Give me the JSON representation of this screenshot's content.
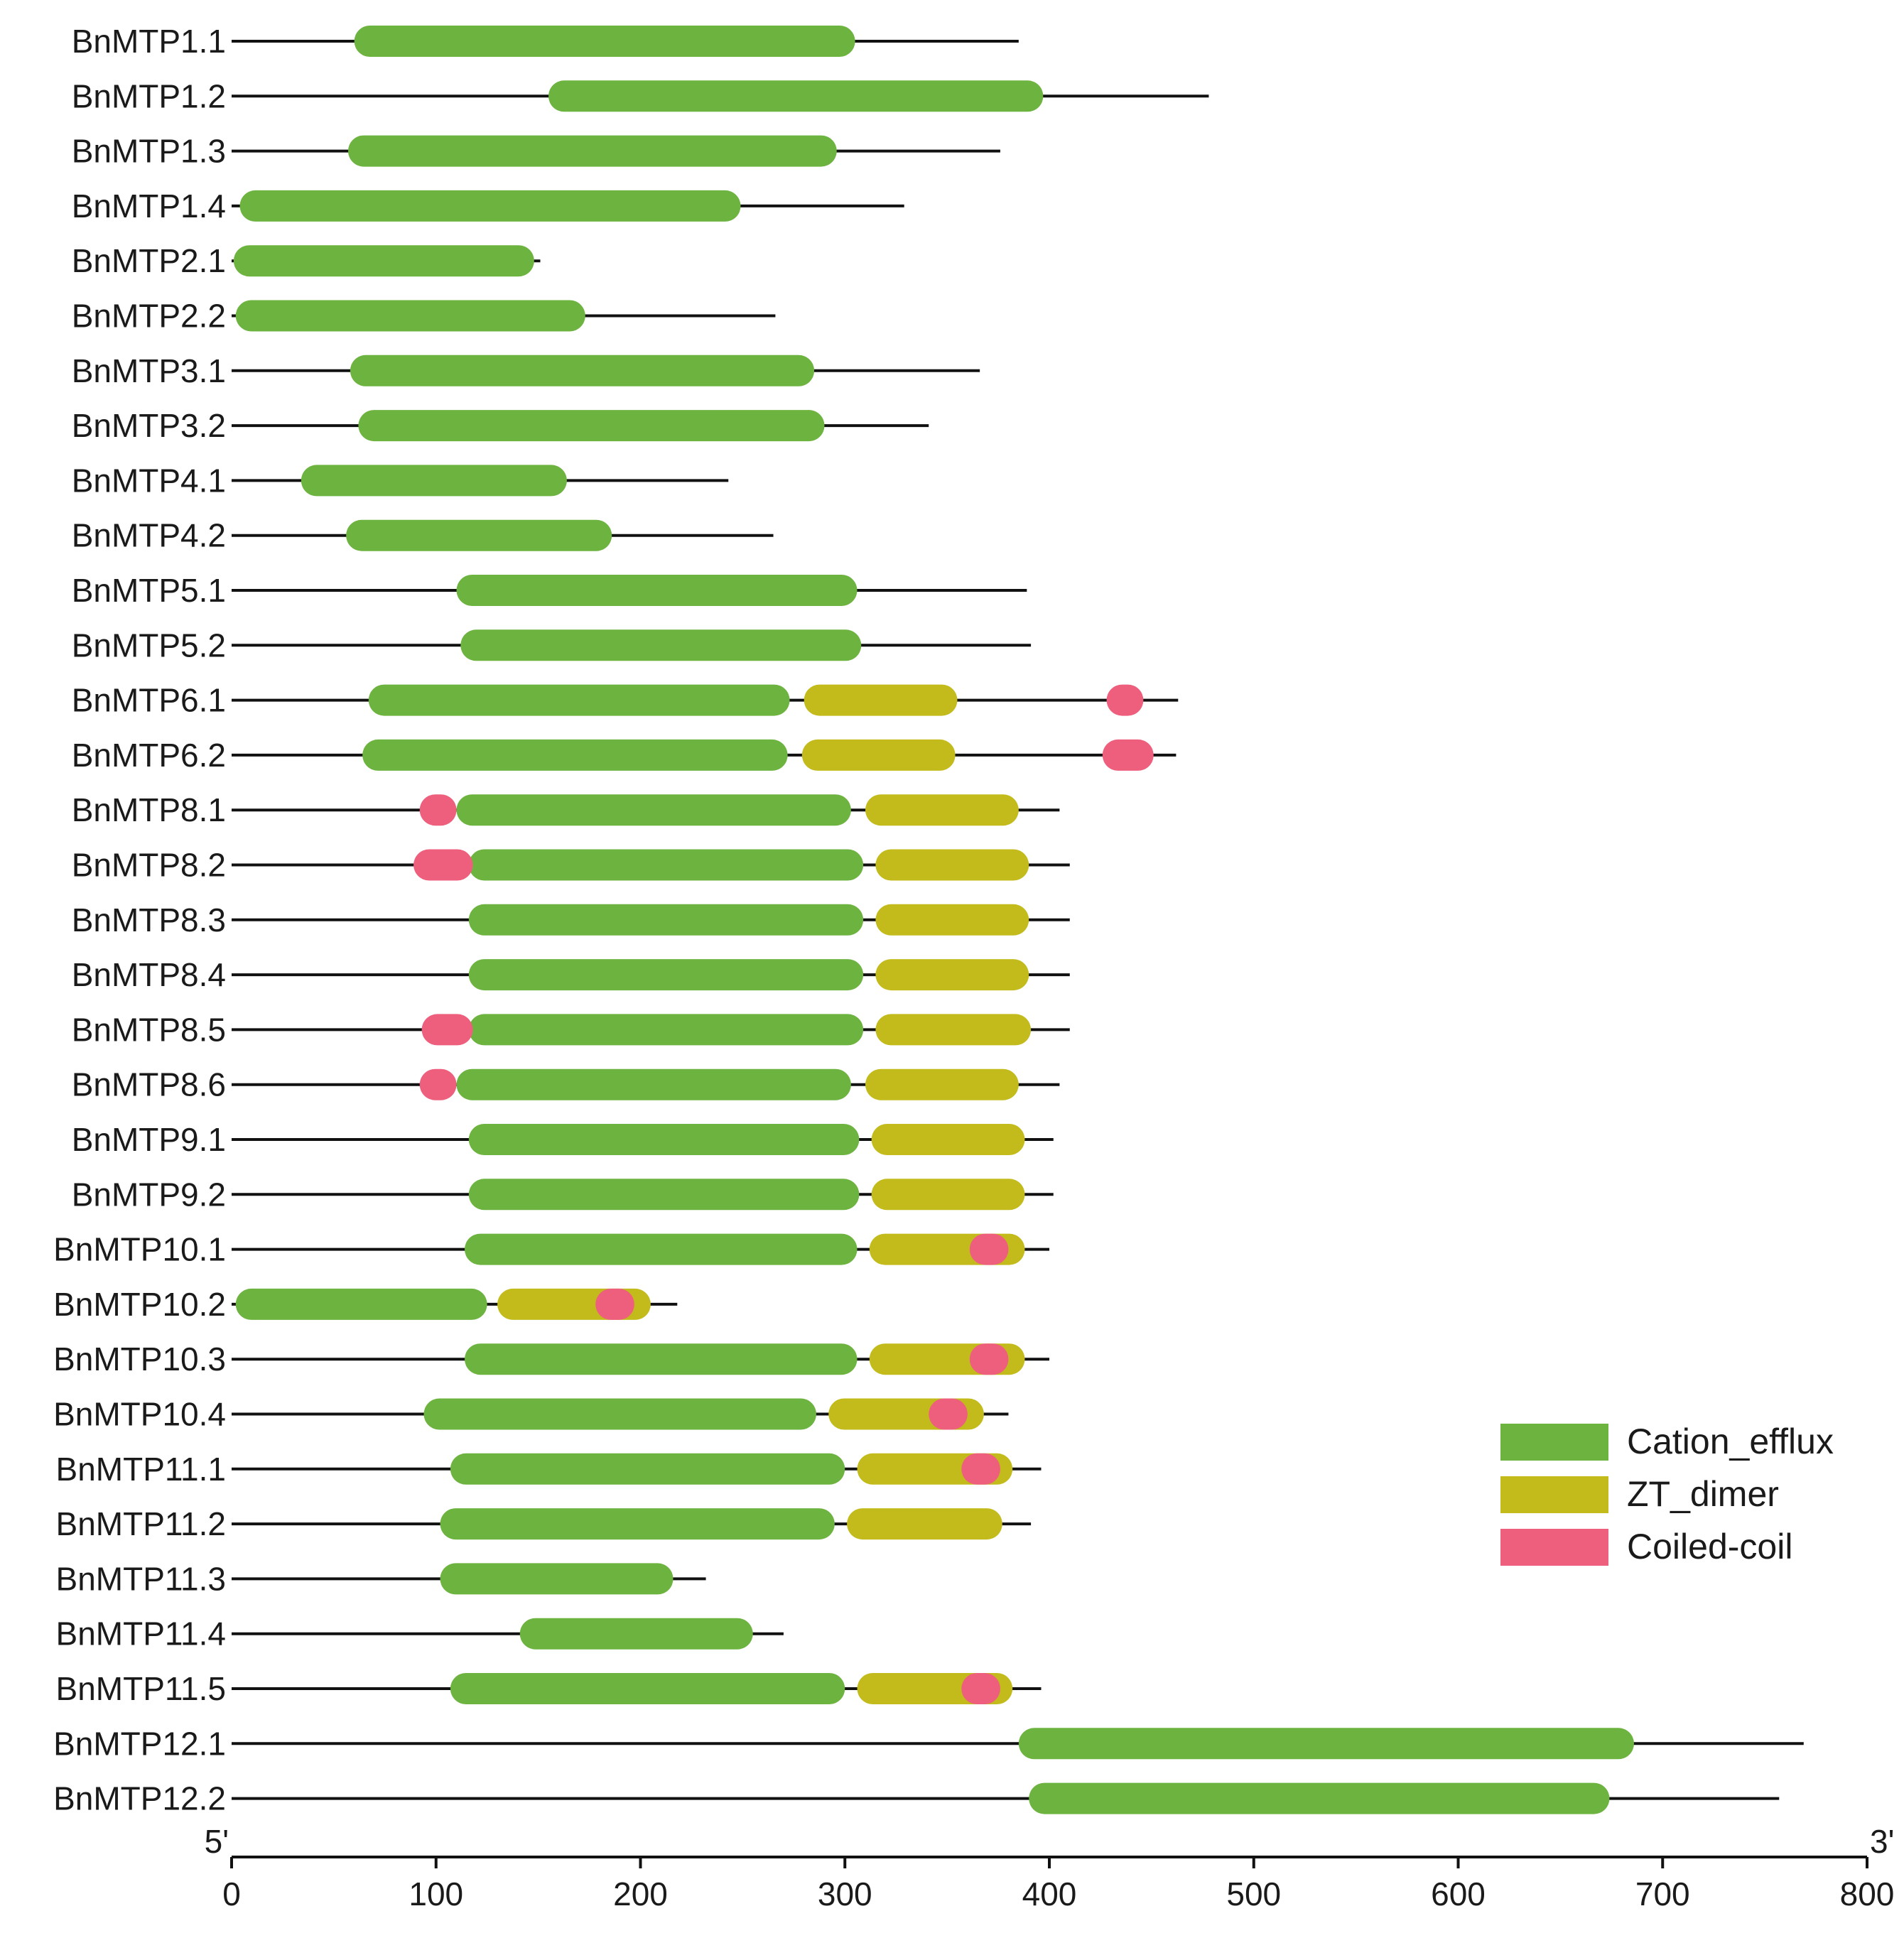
{
  "chart_data": {
    "type": "protein-domain-map",
    "title": "",
    "xlabel": "",
    "ylabel": "",
    "xlim": [
      0,
      800
    ],
    "x_ticks": [
      0,
      100,
      200,
      300,
      400,
      500,
      600,
      700,
      800
    ],
    "x_tick_labels": [
      "0",
      "100",
      "200",
      "300",
      "400",
      "500",
      "600",
      "700",
      "800"
    ],
    "end_labels": {
      "start": "5'",
      "end": "3'"
    },
    "legend": [
      {
        "key": "Cation_efflux",
        "label": "Cation_efflux",
        "color": "#6db33f"
      },
      {
        "key": "ZT_dimer",
        "label": "ZT_dimer",
        "color": "#c2bb1b"
      },
      {
        "key": "Coiled-coil",
        "label": "Coiled-coil",
        "color": "#ee5f7d"
      }
    ],
    "line_color": "#111111",
    "proteins": [
      {
        "name": "BnMTP1.1",
        "length": 385,
        "domains": [
          {
            "type": "Cation_efflux",
            "start": 60,
            "end": 305
          }
        ]
      },
      {
        "name": "BnMTP1.2",
        "length": 478,
        "domains": [
          {
            "type": "Cation_efflux",
            "start": 155,
            "end": 397
          }
        ]
      },
      {
        "name": "BnMTP1.3",
        "length": 376,
        "domains": [
          {
            "type": "Cation_efflux",
            "start": 57,
            "end": 296
          }
        ]
      },
      {
        "name": "BnMTP1.4",
        "length": 329,
        "domains": [
          {
            "type": "Cation_efflux",
            "start": 4,
            "end": 249
          }
        ]
      },
      {
        "name": "BnMTP2.1",
        "length": 151,
        "domains": [
          {
            "type": "Cation_efflux",
            "start": 1,
            "end": 148
          }
        ]
      },
      {
        "name": "BnMTP2.2",
        "length": 266,
        "domains": [
          {
            "type": "Cation_efflux",
            "start": 2,
            "end": 173
          }
        ]
      },
      {
        "name": "BnMTP3.1",
        "length": 366,
        "domains": [
          {
            "type": "Cation_efflux",
            "start": 58,
            "end": 285
          }
        ]
      },
      {
        "name": "BnMTP3.2",
        "length": 341,
        "domains": [
          {
            "type": "Cation_efflux",
            "start": 62,
            "end": 290
          }
        ]
      },
      {
        "name": "BnMTP4.1",
        "length": 243,
        "domains": [
          {
            "type": "Cation_efflux",
            "start": 34,
            "end": 164
          }
        ]
      },
      {
        "name": "BnMTP4.2",
        "length": 265,
        "domains": [
          {
            "type": "Cation_efflux",
            "start": 56,
            "end": 186
          }
        ]
      },
      {
        "name": "BnMTP5.1",
        "length": 389,
        "domains": [
          {
            "type": "Cation_efflux",
            "start": 110,
            "end": 306
          }
        ]
      },
      {
        "name": "BnMTP5.2",
        "length": 391,
        "domains": [
          {
            "type": "Cation_efflux",
            "start": 112,
            "end": 308
          }
        ]
      },
      {
        "name": "BnMTP6.1",
        "length": 463,
        "domains": [
          {
            "type": "Cation_efflux",
            "start": 67,
            "end": 273
          },
          {
            "type": "ZT_dimer",
            "start": 280,
            "end": 355
          },
          {
            "type": "Coiled-coil",
            "start": 428,
            "end": 446
          }
        ]
      },
      {
        "name": "BnMTP6.2",
        "length": 462,
        "domains": [
          {
            "type": "Cation_efflux",
            "start": 64,
            "end": 272
          },
          {
            "type": "ZT_dimer",
            "start": 279,
            "end": 354
          },
          {
            "type": "Coiled-coil",
            "start": 426,
            "end": 451
          }
        ]
      },
      {
        "name": "BnMTP8.1",
        "length": 405,
        "domains": [
          {
            "type": "Coiled-coil",
            "start": 92,
            "end": 110
          },
          {
            "type": "Cation_efflux",
            "start": 110,
            "end": 303
          },
          {
            "type": "ZT_dimer",
            "start": 310,
            "end": 385
          }
        ]
      },
      {
        "name": "BnMTP8.2",
        "length": 410,
        "domains": [
          {
            "type": "Coiled-coil",
            "start": 89,
            "end": 118
          },
          {
            "type": "Cation_efflux",
            "start": 116,
            "end": 309
          },
          {
            "type": "ZT_dimer",
            "start": 315,
            "end": 390
          }
        ]
      },
      {
        "name": "BnMTP8.3",
        "length": 410,
        "domains": [
          {
            "type": "Cation_efflux",
            "start": 116,
            "end": 309
          },
          {
            "type": "ZT_dimer",
            "start": 315,
            "end": 390
          }
        ]
      },
      {
        "name": "BnMTP8.4",
        "length": 410,
        "domains": [
          {
            "type": "Cation_efflux",
            "start": 116,
            "end": 309
          },
          {
            "type": "ZT_dimer",
            "start": 315,
            "end": 390
          }
        ]
      },
      {
        "name": "BnMTP8.5",
        "length": 410,
        "domains": [
          {
            "type": "Coiled-coil",
            "start": 93,
            "end": 118
          },
          {
            "type": "Cation_efflux",
            "start": 116,
            "end": 309
          },
          {
            "type": "ZT_dimer",
            "start": 315,
            "end": 391
          }
        ]
      },
      {
        "name": "BnMTP8.6",
        "length": 405,
        "domains": [
          {
            "type": "Coiled-coil",
            "start": 92,
            "end": 110
          },
          {
            "type": "Cation_efflux",
            "start": 110,
            "end": 303
          },
          {
            "type": "ZT_dimer",
            "start": 310,
            "end": 385
          }
        ]
      },
      {
        "name": "BnMTP9.1",
        "length": 402,
        "domains": [
          {
            "type": "Cation_efflux",
            "start": 116,
            "end": 307
          },
          {
            "type": "ZT_dimer",
            "start": 313,
            "end": 388
          }
        ]
      },
      {
        "name": "BnMTP9.2",
        "length": 402,
        "domains": [
          {
            "type": "Cation_efflux",
            "start": 116,
            "end": 307
          },
          {
            "type": "ZT_dimer",
            "start": 313,
            "end": 388
          }
        ]
      },
      {
        "name": "BnMTP10.1",
        "length": 400,
        "domains": [
          {
            "type": "Cation_efflux",
            "start": 114,
            "end": 306
          },
          {
            "type": "ZT_dimer",
            "start": 312,
            "end": 388
          },
          {
            "type": "Coiled-coil",
            "start": 361,
            "end": 380
          }
        ]
      },
      {
        "name": "BnMTP10.2",
        "length": 218,
        "domains": [
          {
            "type": "Cation_efflux",
            "start": 2,
            "end": 125
          },
          {
            "type": "ZT_dimer",
            "start": 130,
            "end": 205
          },
          {
            "type": "Coiled-coil",
            "start": 178,
            "end": 197
          }
        ]
      },
      {
        "name": "BnMTP10.3",
        "length": 400,
        "domains": [
          {
            "type": "Cation_efflux",
            "start": 114,
            "end": 306
          },
          {
            "type": "ZT_dimer",
            "start": 312,
            "end": 388
          },
          {
            "type": "Coiled-coil",
            "start": 361,
            "end": 380
          }
        ]
      },
      {
        "name": "BnMTP10.4",
        "length": 380,
        "domains": [
          {
            "type": "Cation_efflux",
            "start": 94,
            "end": 286
          },
          {
            "type": "ZT_dimer",
            "start": 292,
            "end": 368
          },
          {
            "type": "Coiled-coil",
            "start": 341,
            "end": 360
          }
        ]
      },
      {
        "name": "BnMTP11.1",
        "length": 396,
        "domains": [
          {
            "type": "Cation_efflux",
            "start": 107,
            "end": 300
          },
          {
            "type": "ZT_dimer",
            "start": 306,
            "end": 382
          },
          {
            "type": "Coiled-coil",
            "start": 357,
            "end": 376
          }
        ]
      },
      {
        "name": "BnMTP11.2",
        "length": 391,
        "domains": [
          {
            "type": "Cation_efflux",
            "start": 102,
            "end": 295
          },
          {
            "type": "ZT_dimer",
            "start": 301,
            "end": 377
          }
        ]
      },
      {
        "name": "BnMTP11.3",
        "length": 232,
        "domains": [
          {
            "type": "Cation_efflux",
            "start": 102,
            "end": 216
          }
        ]
      },
      {
        "name": "BnMTP11.4",
        "length": 270,
        "domains": [
          {
            "type": "Cation_efflux",
            "start": 141,
            "end": 255
          }
        ]
      },
      {
        "name": "BnMTP11.5",
        "length": 396,
        "domains": [
          {
            "type": "Cation_efflux",
            "start": 107,
            "end": 300
          },
          {
            "type": "ZT_dimer",
            "start": 306,
            "end": 382
          },
          {
            "type": "Coiled-coil",
            "start": 357,
            "end": 376
          }
        ]
      },
      {
        "name": "BnMTP12.1",
        "length": 769,
        "domains": [
          {
            "type": "Cation_efflux",
            "start": 385,
            "end": 686
          }
        ]
      },
      {
        "name": "BnMTP12.2",
        "length": 757,
        "domains": [
          {
            "type": "Cation_efflux",
            "start": 390,
            "end": 674
          }
        ]
      }
    ]
  }
}
